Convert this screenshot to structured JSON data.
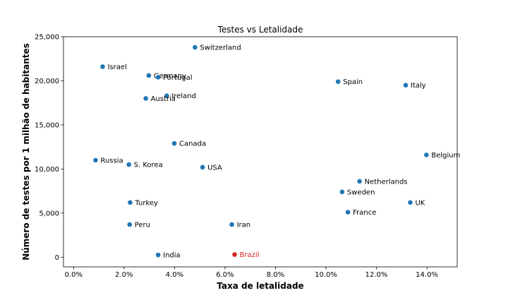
{
  "chart_data": {
    "type": "scatter",
    "title": "Testes vs Letalidade",
    "xlabel": "Taxa de letalidade",
    "ylabel": "Número de testes por 1 milhão de habitantes",
    "xlim": [
      -0.004,
      0.152
    ],
    "ylim": [
      -1100,
      25000
    ],
    "xticks": [
      0.0,
      0.02,
      0.04,
      0.06,
      0.08,
      0.1,
      0.12,
      0.14
    ],
    "xtick_labels": [
      "0.0%",
      "2.0%",
      "4.0%",
      "6.0%",
      "8.0%",
      "10.0%",
      "12.0%",
      "14.0%"
    ],
    "yticks": [
      0,
      5000,
      10000,
      15000,
      20000,
      25000
    ],
    "ytick_labels": [
      "0",
      "5,000",
      "10,000",
      "15,000",
      "20,000",
      "25,000"
    ],
    "grid": false,
    "default_color": "#1f77b4",
    "highlight_color": "#d62728",
    "points": [
      {
        "label": "Switzerland",
        "x": 0.0481,
        "y": 23800
      },
      {
        "label": "Israel",
        "x": 0.0115,
        "y": 21600
      },
      {
        "label": "Germany",
        "x": 0.0298,
        "y": 20600
      },
      {
        "label": "Portugal",
        "x": 0.0335,
        "y": 20400
      },
      {
        "label": "Ireland",
        "x": 0.0369,
        "y": 18300
      },
      {
        "label": "Austria",
        "x": 0.0286,
        "y": 18000
      },
      {
        "label": "Spain",
        "x": 0.1048,
        "y": 19900
      },
      {
        "label": "Italy",
        "x": 0.1316,
        "y": 19500
      },
      {
        "label": "Canada",
        "x": 0.0399,
        "y": 12900
      },
      {
        "label": "Belgium",
        "x": 0.1398,
        "y": 11600
      },
      {
        "label": "Russia",
        "x": 0.0087,
        "y": 11000
      },
      {
        "label": "S. Korea",
        "x": 0.0219,
        "y": 10500
      },
      {
        "label": "USA",
        "x": 0.0511,
        "y": 10200
      },
      {
        "label": "Netherlands",
        "x": 0.1133,
        "y": 8600
      },
      {
        "label": "Sweden",
        "x": 0.1064,
        "y": 7400
      },
      {
        "label": "France",
        "x": 0.1087,
        "y": 5100
      },
      {
        "label": "UK",
        "x": 0.1334,
        "y": 6200
      },
      {
        "label": "Turkey",
        "x": 0.0224,
        "y": 6200
      },
      {
        "label": "Peru",
        "x": 0.0222,
        "y": 3700
      },
      {
        "label": "Iran",
        "x": 0.0627,
        "y": 3700
      },
      {
        "label": "India",
        "x": 0.0335,
        "y": 250
      },
      {
        "label": "Brazil",
        "x": 0.0638,
        "y": 300,
        "highlight": true
      }
    ]
  }
}
